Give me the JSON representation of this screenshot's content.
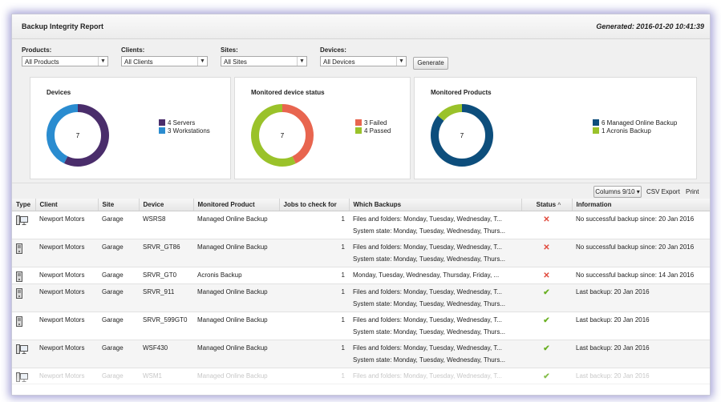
{
  "header": {
    "title": "Backup Integrity Report",
    "generated": "Generated: 2016-01-20 10:41:39"
  },
  "filters": [
    {
      "label": "Products:",
      "value": "All Products"
    },
    {
      "label": "Clients:",
      "value": "All Clients"
    },
    {
      "label": "Sites:",
      "value": "All Sites"
    },
    {
      "label": "Devices:",
      "value": "All Devices"
    }
  ],
  "generate_label": "Generate",
  "cards": [
    {
      "title": "Devices",
      "center": "7",
      "legend": [
        {
          "label": "4 Servers",
          "color": "#4a2d6b",
          "value": 4
        },
        {
          "label": "3 Workstations",
          "color": "#2a8cd0",
          "value": 3
        }
      ]
    },
    {
      "title": "Monitored device status",
      "center": "7",
      "legend": [
        {
          "label": "3 Failed",
          "color": "#e8654f",
          "value": 3
        },
        {
          "label": "4 Passed",
          "color": "#9ac22a",
          "value": 4
        }
      ]
    },
    {
      "title": "Monitored Products",
      "center": "7",
      "legend": [
        {
          "label": "6 Managed Online Backup",
          "color": "#0d4e7c",
          "value": 6
        },
        {
          "label": "1 Acronis Backup",
          "color": "#9ac22a",
          "value": 1
        }
      ]
    }
  ],
  "toolbar": {
    "columns_label": "Columns 9/10",
    "csv_label": "CSV Export",
    "print_label": "Print"
  },
  "table": {
    "columns": [
      "Type",
      "Client",
      "Site",
      "Device",
      "Monitored Product",
      "Jobs to check for",
      "Which Backups",
      "Status",
      "Information"
    ],
    "status_sort_glyph": "^",
    "rows": [
      {
        "type": "workstation",
        "client": "Newport Motors",
        "site": "Garage",
        "device": "WSRS8",
        "product": "Managed Online Backup",
        "jobs": "1",
        "backups": [
          "Files and folders: Monday, Tuesday, Wednesday, T...",
          "System state: Monday, Tuesday, Wednesday, Thurs..."
        ],
        "status": "failed",
        "info": "No successful backup since: 20 Jan 2016"
      },
      {
        "type": "server",
        "client": "Newport Motors",
        "site": "Garage",
        "device": "SRVR_GT86",
        "product": "Managed Online Backup",
        "jobs": "1",
        "backups": [
          "Files and folders: Monday, Tuesday, Wednesday, T...",
          "System state: Monday, Tuesday, Wednesday, Thurs..."
        ],
        "status": "failed",
        "info": "No successful backup since: 20 Jan 2016"
      },
      {
        "type": "server",
        "client": "Newport Motors",
        "site": "Garage",
        "device": "SRVR_GT0",
        "product": "Acronis Backup",
        "jobs": "1",
        "backups": [
          "Monday, Tuesday, Wednesday, Thursday, Friday, ..."
        ],
        "status": "failed",
        "info": "No successful backup since: 14 Jan 2016"
      },
      {
        "type": "server",
        "client": "Newport Motors",
        "site": "Garage",
        "device": "SRVR_911",
        "product": "Managed Online Backup",
        "jobs": "1",
        "backups": [
          "Files and folders: Monday, Tuesday, Wednesday, T...",
          "System state: Monday, Tuesday, Wednesday, Thurs..."
        ],
        "status": "passed",
        "info": "Last backup: 20 Jan 2016"
      },
      {
        "type": "server",
        "client": "Newport Motors",
        "site": "Garage",
        "device": "SRVR_599GT0",
        "product": "Managed Online Backup",
        "jobs": "1",
        "backups": [
          "Files and folders: Monday, Tuesday, Wednesday, T...",
          "System state: Monday, Tuesday, Wednesday, Thurs..."
        ],
        "status": "passed",
        "info": "Last backup: 20 Jan 2016"
      },
      {
        "type": "workstation",
        "client": "Newport Motors",
        "site": "Garage",
        "device": "WSF430",
        "product": "Managed Online Backup",
        "jobs": "1",
        "backups": [
          "Files and folders: Monday, Tuesday, Wednesday, T...",
          "System state: Monday, Tuesday, Wednesday, Thurs..."
        ],
        "status": "passed",
        "info": "Last backup: 20 Jan 2016"
      },
      {
        "type": "workstation",
        "client": "Newport Motors",
        "site": "Garage",
        "device": "WSM1",
        "product": "Managed Online Backup",
        "jobs": "1",
        "backups": [
          "Files and folders: Monday, Tuesday, Wednesday, T..."
        ],
        "status": "passed",
        "info": "Last backup: 20 Jan 2016"
      }
    ]
  }
}
